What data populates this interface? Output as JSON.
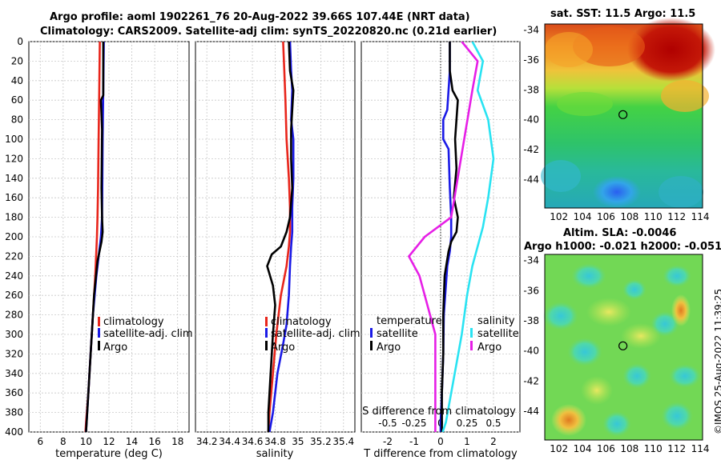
{
  "title": {
    "line1": "Argo profile: aoml 1902261_76 20-Aug-2022 39.66S 107.44E (NRT data)",
    "line2": "Climatology: CARS2009. Satellite-adj clim: synTS_20220820.nc (0.21d earlier)"
  },
  "right": {
    "sst_title": "sat. SST: 11.5 Argo: 11.5",
    "sla_title1": "Altim. SLA: -0.0046",
    "sla_title2": "Argo h1000: -0.021 h2000: -0.051",
    "copyright": "©IMOS 25-Aug-2022 11:39:25",
    "map_yticks": [
      -34,
      -36,
      -38,
      -40,
      -42,
      -44
    ],
    "map_xticks": [
      102,
      104,
      106,
      108,
      110,
      112,
      114
    ],
    "lon_range": [
      100.8,
      114.2
    ],
    "lat_range": [
      -45.9,
      -33.6
    ],
    "argo_lon": 107.44,
    "argo_lat": -39.66
  },
  "colors": {
    "climatology": "#e8251b",
    "satellite": "#1a1ae6",
    "argo": "#000000",
    "salinity_sat": "#29e3f2",
    "salinity_argo": "#e61ee6"
  },
  "chart_data": [
    {
      "type": "line",
      "name": "temperature",
      "xlabel": "temperature (deg C)",
      "xlim": [
        5,
        19
      ],
      "xticks": [
        6,
        8,
        10,
        12,
        14,
        16,
        18
      ],
      "ylim": [
        0,
        400
      ],
      "yticks": [
        0,
        20,
        40,
        60,
        80,
        100,
        120,
        140,
        160,
        180,
        200,
        220,
        240,
        260,
        280,
        300,
        320,
        340,
        360,
        380,
        400
      ],
      "grid": true,
      "legend": [
        "climatology",
        "satellite-adj. clim",
        "Argo"
      ],
      "series": [
        {
          "name": "climatology",
          "x": [
            11.2,
            11.15,
            11.1,
            11.05,
            11.0,
            10.95,
            10.8,
            10.6,
            10.4,
            10.2,
            10.0,
            9.95
          ],
          "y": [
            0,
            50,
            100,
            150,
            180,
            200,
            240,
            280,
            320,
            360,
            390,
            400
          ]
        },
        {
          "name": "satellite-adj. clim",
          "x": [
            11.55,
            11.5,
            11.45,
            11.42,
            11.4,
            11.3,
            10.9,
            10.6,
            10.4,
            10.2,
            10.05,
            10.0
          ],
          "y": [
            0,
            50,
            100,
            150,
            180,
            200,
            240,
            280,
            320,
            360,
            390,
            400
          ]
        },
        {
          "name": "Argo",
          "x": [
            11.5,
            11.5,
            11.3,
            11.35,
            11.4,
            11.35,
            11.4,
            11.45,
            11.35,
            11.0,
            10.7,
            10.5,
            10.3,
            10.1,
            10.0
          ],
          "y": [
            0,
            55,
            60,
            75,
            90,
            150,
            180,
            195,
            205,
            225,
            260,
            300,
            340,
            380,
            400
          ]
        }
      ]
    },
    {
      "type": "line",
      "name": "salinity",
      "xlabel": "salinity",
      "xlim": [
        34.1,
        35.5
      ],
      "xticks": [
        34.2,
        34.4,
        34.6,
        34.8,
        35,
        35.2,
        35.4
      ],
      "xtick_labels": [
        "34.2",
        "34.4",
        "34.6",
        "34.8",
        "35",
        "35.2",
        "35.4"
      ],
      "ylim": [
        0,
        400
      ],
      "grid": true,
      "legend": [
        "climatology",
        "satellite-adj. clim",
        "Argo"
      ],
      "series": [
        {
          "name": "climatology",
          "x": [
            34.87,
            34.88,
            34.89,
            34.9,
            34.92,
            34.93,
            34.93,
            34.92,
            34.9,
            34.85,
            34.81,
            34.78,
            34.75,
            34.74
          ],
          "y": [
            0,
            30,
            60,
            100,
            140,
            170,
            195,
            210,
            230,
            260,
            300,
            340,
            380,
            400
          ]
        },
        {
          "name": "satellite-adj. clim",
          "x": [
            34.93,
            34.94,
            34.95,
            34.94,
            34.96,
            34.96,
            34.95,
            34.95,
            34.94,
            34.93,
            34.92,
            34.9,
            34.87,
            34.82,
            34.78,
            34.75
          ],
          "y": [
            0,
            30,
            50,
            80,
            100,
            140,
            170,
            195,
            210,
            230,
            260,
            290,
            310,
            340,
            380,
            400
          ]
        },
        {
          "name": "Argo",
          "x": [
            34.92,
            34.93,
            34.96,
            34.95,
            34.94,
            34.94,
            34.95,
            34.93,
            34.9,
            34.85,
            34.77,
            34.73,
            34.78,
            34.8,
            34.78,
            34.76,
            34.74,
            34.74
          ],
          "y": [
            0,
            30,
            50,
            70,
            90,
            120,
            150,
            180,
            195,
            210,
            218,
            230,
            250,
            270,
            300,
            340,
            380,
            400
          ]
        }
      ]
    },
    {
      "type": "line",
      "name": "difference",
      "xlabel": "T difference from climatology",
      "xlim": [
        -3,
        3
      ],
      "xticks": [
        -2,
        -1,
        0,
        1,
        2
      ],
      "xlabel_top": "S difference from climatology",
      "xticks_top": [
        -0.5,
        -0.25,
        0,
        0.25,
        0.5
      ],
      "xtick_top_labels": [
        "-0.5",
        "-0.25",
        "0",
        "0.25",
        "0.5"
      ],
      "ylim": [
        0,
        400
      ],
      "grid": true,
      "legend": {
        "temperature_title": "temperature",
        "salinity_title": "salinity",
        "t_satellite": "satellite",
        "t_argo": "Argo",
        "s_satellite": "satellite",
        "s_argo": "Argo"
      },
      "series": [
        {
          "name": "T satellite",
          "x": [
            0.35,
            0.35,
            0.3,
            0.25,
            0.1,
            0.1,
            0.3,
            0.35,
            0.4,
            0.4,
            0.35,
            0.25,
            0.2,
            0.12,
            0.1,
            0.05,
            0.0,
            0.0
          ],
          "y": [
            0,
            30,
            50,
            70,
            80,
            100,
            110,
            150,
            180,
            200,
            215,
            230,
            250,
            280,
            320,
            360,
            390,
            400
          ]
        },
        {
          "name": "T Argo",
          "x": [
            0.35,
            0.35,
            0.45,
            0.65,
            0.6,
            0.55,
            0.6,
            0.5,
            0.65,
            0.6,
            0.4,
            0.3,
            0.15,
            0.1,
            0.1,
            0.05,
            0.05
          ],
          "y": [
            0,
            30,
            50,
            60,
            80,
            100,
            130,
            160,
            180,
            195,
            205,
            215,
            240,
            280,
            320,
            360,
            400
          ]
        },
        {
          "name": "S satellite",
          "x": [
            0.3,
            0.4,
            0.35,
            0.45,
            0.5,
            0.45,
            0.4,
            0.35,
            0.3,
            0.25,
            0.2,
            0.15,
            0.1,
            0.05,
            0.02
          ],
          "y": [
            0,
            20,
            50,
            80,
            120,
            160,
            190,
            210,
            230,
            260,
            300,
            330,
            360,
            390,
            400
          ]
        },
        {
          "name": "S Argo",
          "x": [
            0.2,
            0.35,
            0.3,
            0.1,
            -0.15,
            -0.3,
            -0.2,
            -0.15,
            -0.1,
            -0.05,
            -0.05,
            -0.05,
            -0.05
          ],
          "y": [
            0,
            20,
            50,
            180,
            200,
            220,
            240,
            260,
            280,
            300,
            340,
            380,
            400
          ]
        }
      ]
    }
  ]
}
